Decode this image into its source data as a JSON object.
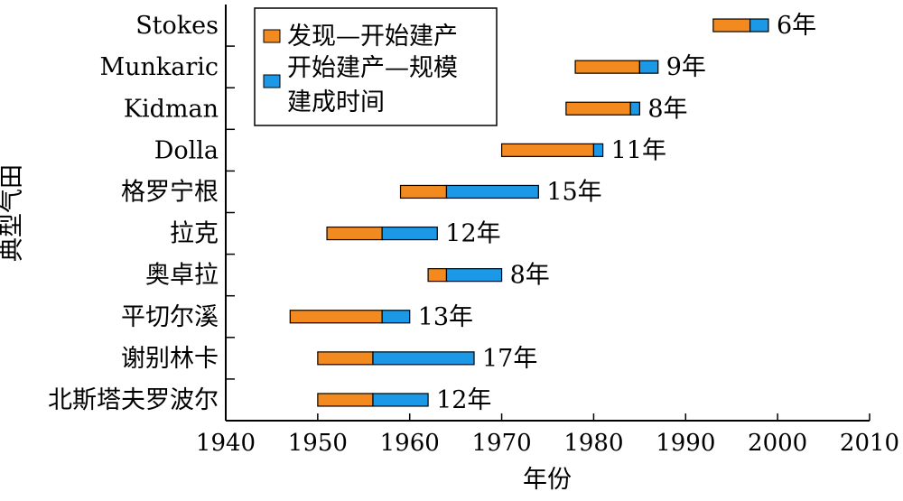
{
  "chart_data": {
    "type": "bar",
    "orientation": "horizontal-stacked-gantt",
    "xlabel": "年份",
    "ylabel": "典型气田",
    "xlim": [
      1940,
      2010
    ],
    "xticks": [
      "1940",
      "1950",
      "1960",
      "1970",
      "1980",
      "1990",
      "2000",
      "2010"
    ],
    "categories": [
      "Stokes",
      "Munkaric",
      "Kidman",
      "Dolla",
      "格罗宁根",
      "拉克",
      "奥卓拉",
      "平切尔溪",
      "谢别林卡",
      "北斯塔夫罗波尔"
    ],
    "series": [
      {
        "name": "发现—开始建产",
        "color": "#f28a1f",
        "ranges": [
          [
            1993,
            1997
          ],
          [
            1978,
            1985
          ],
          [
            1977,
            1984
          ],
          [
            1970,
            1980
          ],
          [
            1959,
            1964
          ],
          [
            1951,
            1957
          ],
          [
            1962,
            1964
          ],
          [
            1947,
            1957
          ],
          [
            1950,
            1956
          ],
          [
            1950,
            1956
          ]
        ]
      },
      {
        "name": "开始建产—规模建成时间",
        "color": "#1b99e6",
        "ranges": [
          [
            1997,
            1999
          ],
          [
            1985,
            1987
          ],
          [
            1984,
            1985
          ],
          [
            1980,
            1981
          ],
          [
            1964,
            1974
          ],
          [
            1957,
            1963
          ],
          [
            1964,
            1970
          ],
          [
            1957,
            1960
          ],
          [
            1956,
            1967
          ],
          [
            1956,
            1962
          ]
        ]
      }
    ],
    "data_labels": [
      "6年",
      "9年",
      "8年",
      "11年",
      "15年",
      "12年",
      "8年",
      "13年",
      "17年",
      "12年"
    ],
    "legend": {
      "position": "top-left",
      "entries": [
        "发现—开始建产",
        "开始建产—规模建成时间"
      ],
      "entry_lines": [
        [
          "发现—开始建产"
        ],
        [
          "开始建产—规模",
          "建成时间"
        ]
      ]
    },
    "grid": false
  }
}
